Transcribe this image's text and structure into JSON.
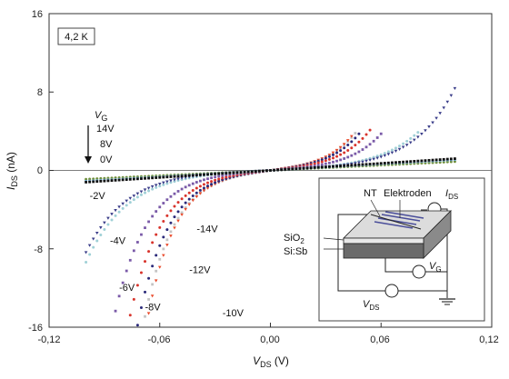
{
  "chart_data": {
    "type": "scatter",
    "xlabel": {
      "symbol": "V",
      "sub": "DS",
      "unit": " (V)"
    },
    "ylabel": {
      "symbol": "I",
      "sub": "DS",
      "unit": " (nA)"
    },
    "xlim": [
      -0.12,
      0.12
    ],
    "ylim": [
      -16,
      16
    ],
    "x_ticks": [
      "-0,12",
      "-0,06",
      "0,00",
      "0,06",
      "0,12"
    ],
    "x_tick_values": [
      -0.12,
      -0.06,
      0.0,
      0.06,
      0.12
    ],
    "y_ticks": [
      "16",
      "8",
      "0",
      "-8",
      "-16"
    ],
    "y_tick_values": [
      16,
      8,
      0,
      -8,
      -16
    ],
    "temperature_label": "4,2 K",
    "gate_header": {
      "symbol": "V",
      "sub": "G"
    },
    "gate_labels_top": [
      "14V",
      "8V",
      "0V"
    ],
    "series": [
      {
        "name": "-14V",
        "type": "exp",
        "xmin": -0.1,
        "xmax": 0.0465,
        "amp": 0.44,
        "k": 62,
        "step": 0.002,
        "color": "#c4c4c4",
        "marker": "square"
      },
      {
        "name": "-12V",
        "type": "exp",
        "xmin": -0.1,
        "xmax": 0.045,
        "amp": 0.4,
        "k": 65,
        "step": 0.002,
        "color": "#e94a2b",
        "marker": "triangle-down"
      },
      {
        "name": "-10V",
        "type": "exp",
        "xmin": -0.1,
        "xmax": 0.0495,
        "amp": 0.42,
        "k": 60,
        "step": 0.002,
        "color": "#2b2a7a",
        "marker": "circle"
      },
      {
        "name": "-8V",
        "type": "exp",
        "xmin": -0.1,
        "xmax": 0.054,
        "amp": 0.36,
        "k": 58,
        "step": 0.002,
        "color": "#d8342c",
        "marker": "circle"
      },
      {
        "name": "-6V",
        "type": "exp",
        "xmin": -0.1,
        "xmax": 0.061,
        "amp": 0.26,
        "k": 56,
        "step": 0.002,
        "color": "#7a5aa8",
        "marker": "square"
      },
      {
        "name": "-4V",
        "type": "exp",
        "xmin": -0.1,
        "xmax": 0.08,
        "amp": 0.23,
        "k": 44,
        "step": 0.002,
        "color": "#9fd0d6",
        "marker": "circle"
      },
      {
        "name": "-2V",
        "type": "exp",
        "xmin": -0.1,
        "xmax": 0.1,
        "amp": 0.186,
        "k": 45,
        "step": 0.002,
        "color": "#3b3e8a",
        "marker": "triangle-down"
      },
      {
        "name": "0V",
        "type": "linear",
        "xmin": -0.1,
        "xmax": 0.1,
        "slope": 9,
        "step": 0.002,
        "color": "#6f8f3a",
        "marker": "circle"
      },
      {
        "name": "8V",
        "type": "linear",
        "xmin": -0.1,
        "xmax": 0.1,
        "slope": 11,
        "step": 0.002,
        "color": "#6fa8d0",
        "marker": "circle"
      },
      {
        "name": "14V",
        "type": "linear",
        "xmin": -0.1,
        "xmax": 0.1,
        "slope": 12,
        "step": 0.002,
        "color": "#111111",
        "marker": "square"
      }
    ],
    "curve_labels": [
      {
        "text": "-2V",
        "x": -0.098,
        "y": -2.9
      },
      {
        "text": "-4V",
        "x": -0.087,
        "y": -7.5
      },
      {
        "text": "-6V",
        "x": -0.082,
        "y": -12.3
      },
      {
        "text": "-8V",
        "x": -0.068,
        "y": -14.3
      },
      {
        "text": "-14V",
        "x": -0.04,
        "y": -6.3
      },
      {
        "text": "-12V",
        "x": -0.044,
        "y": -10.5
      },
      {
        "text": "-10V",
        "x": -0.026,
        "y": -14.9
      }
    ],
    "grid": false,
    "legend": "none"
  },
  "inset": {
    "labels": {
      "nt": "NT",
      "electrodes": "Elektroden",
      "sio2_base": "SiO",
      "sio2_sub": "2",
      "sisb": "Si:Sb",
      "ids_symbol": "I",
      "ids_sub": "DS",
      "vg_symbol": "V",
      "vg_sub": "G",
      "vds_symbol": "V",
      "vds_sub": "DS"
    }
  }
}
